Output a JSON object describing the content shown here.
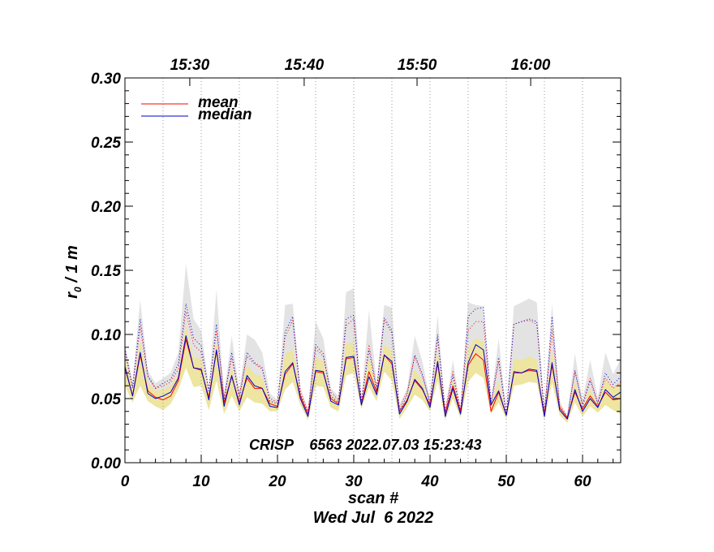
{
  "chart_data": {
    "type": "line",
    "title": "",
    "xlabel": "scan #",
    "ylabel": "r₀ / 1 m",
    "ylabel_main": "r",
    "ylabel_sub": "0",
    "ylabel_rest": " / 1 m",
    "date_label": "Wed Jul  6 2022",
    "annotation": "CRISP    6563 2022.07.03 15:23:43",
    "xlim": [
      0,
      65
    ],
    "ylim": [
      0.0,
      0.3
    ],
    "x_ticks": [
      0,
      10,
      20,
      30,
      40,
      50,
      60
    ],
    "x_tick_labels": [
      "0",
      "10",
      "20",
      "30",
      "40",
      "50",
      "60"
    ],
    "y_ticks": [
      0.0,
      0.05,
      0.1,
      0.15,
      0.2,
      0.25,
      0.3
    ],
    "y_tick_labels": [
      "0.00",
      "0.05",
      "0.10",
      "0.15",
      "0.20",
      "0.25",
      "0.30"
    ],
    "top_axis": {
      "labels": [
        "15:30",
        "15:40",
        "15:50",
        "16:00"
      ],
      "positions_scan": [
        8.5,
        23.5,
        38.3,
        53.2
      ]
    },
    "time_gridlines_scan": [
      5,
      10,
      15,
      20,
      25,
      30,
      35,
      40,
      45,
      50,
      55,
      60
    ],
    "legend": [
      {
        "name": "mean",
        "color": "#ff0000"
      },
      {
        "name": "median",
        "color": "#0000cc"
      }
    ],
    "colors": {
      "mean": "#ff0000",
      "median": "#0000cc",
      "band_outer": "#e3e3e3",
      "band_inner": "#ede5a0",
      "grid": "#999999"
    },
    "series": [
      {
        "name": "mean",
        "values": [
          0.074,
          0.052,
          0.084,
          0.056,
          0.051,
          0.049,
          0.052,
          0.064,
          0.096,
          0.074,
          0.072,
          0.051,
          0.087,
          0.047,
          0.067,
          0.047,
          0.066,
          0.058,
          0.058,
          0.046,
          0.044,
          0.069,
          0.077,
          0.052,
          0.038,
          0.071,
          0.07,
          0.05,
          0.046,
          0.081,
          0.082,
          0.046,
          0.071,
          0.055,
          0.084,
          0.077,
          0.04,
          0.049,
          0.064,
          0.057,
          0.045,
          0.077,
          0.039,
          0.06,
          0.04,
          0.076,
          0.085,
          0.08,
          0.04,
          0.055,
          0.037,
          0.07,
          0.07,
          0.072,
          0.071,
          0.038,
          0.076,
          0.043,
          0.035,
          0.055,
          0.042,
          0.052,
          0.044,
          0.055,
          0.049,
          0.05
        ]
      },
      {
        "name": "median",
        "values": [
          0.075,
          0.052,
          0.086,
          0.054,
          0.05,
          0.052,
          0.055,
          0.066,
          0.099,
          0.074,
          0.073,
          0.049,
          0.088,
          0.044,
          0.068,
          0.045,
          0.068,
          0.06,
          0.058,
          0.044,
          0.043,
          0.071,
          0.078,
          0.05,
          0.036,
          0.072,
          0.071,
          0.048,
          0.045,
          0.082,
          0.083,
          0.045,
          0.067,
          0.053,
          0.084,
          0.079,
          0.038,
          0.048,
          0.065,
          0.058,
          0.043,
          0.079,
          0.036,
          0.058,
          0.038,
          0.078,
          0.092,
          0.088,
          0.045,
          0.056,
          0.037,
          0.071,
          0.07,
          0.073,
          0.072,
          0.036,
          0.078,
          0.041,
          0.034,
          0.057,
          0.04,
          0.05,
          0.043,
          0.057,
          0.051,
          0.055
        ]
      },
      {
        "name": "mean upper (dotted)",
        "values": [
          0.087,
          0.058,
          0.106,
          0.067,
          0.058,
          0.06,
          0.063,
          0.073,
          0.118,
          0.092,
          0.086,
          0.057,
          0.103,
          0.051,
          0.082,
          0.053,
          0.083,
          0.077,
          0.073,
          0.05,
          0.047,
          0.098,
          0.111,
          0.055,
          0.04,
          0.089,
          0.083,
          0.055,
          0.049,
          0.107,
          0.112,
          0.048,
          0.092,
          0.058,
          0.111,
          0.101,
          0.043,
          0.055,
          0.083,
          0.067,
          0.048,
          0.097,
          0.041,
          0.071,
          0.041,
          0.103,
          0.11,
          0.11,
          0.045,
          0.079,
          0.038,
          0.108,
          0.11,
          0.111,
          0.108,
          0.039,
          0.103,
          0.045,
          0.036,
          0.071,
          0.046,
          0.066,
          0.047,
          0.066,
          0.058,
          0.063
        ]
      },
      {
        "name": "median upper (dotted)",
        "values": [
          0.089,
          0.059,
          0.112,
          0.068,
          0.058,
          0.062,
          0.065,
          0.077,
          0.124,
          0.097,
          0.091,
          0.056,
          0.108,
          0.049,
          0.086,
          0.05,
          0.086,
          0.078,
          0.074,
          0.048,
          0.046,
          0.102,
          0.114,
          0.053,
          0.038,
          0.092,
          0.085,
          0.052,
          0.047,
          0.112,
          0.115,
          0.047,
          0.088,
          0.056,
          0.113,
          0.103,
          0.04,
          0.053,
          0.084,
          0.069,
          0.046,
          0.1,
          0.038,
          0.068,
          0.039,
          0.114,
          0.12,
          0.121,
          0.047,
          0.082,
          0.037,
          0.108,
          0.11,
          0.112,
          0.11,
          0.037,
          0.114,
          0.043,
          0.035,
          0.072,
          0.044,
          0.064,
          0.046,
          0.07,
          0.061,
          0.067
        ]
      }
    ],
    "bands": [
      {
        "name": "gray range",
        "lower": [
          0.068,
          0.05,
          0.08,
          0.052,
          0.049,
          0.05,
          0.053,
          0.062,
          0.09,
          0.07,
          0.068,
          0.048,
          0.08,
          0.044,
          0.064,
          0.045,
          0.064,
          0.058,
          0.056,
          0.044,
          0.043,
          0.068,
          0.074,
          0.05,
          0.036,
          0.068,
          0.067,
          0.048,
          0.045,
          0.078,
          0.08,
          0.045,
          0.068,
          0.053,
          0.081,
          0.076,
          0.038,
          0.048,
          0.062,
          0.056,
          0.043,
          0.076,
          0.036,
          0.058,
          0.038,
          0.076,
          0.086,
          0.082,
          0.043,
          0.054,
          0.037,
          0.068,
          0.068,
          0.07,
          0.069,
          0.036,
          0.075,
          0.041,
          0.034,
          0.055,
          0.04,
          0.05,
          0.043,
          0.055,
          0.049,
          0.052
        ],
        "upper": [
          0.092,
          0.064,
          0.127,
          0.072,
          0.062,
          0.066,
          0.07,
          0.086,
          0.155,
          0.112,
          0.103,
          0.06,
          0.135,
          0.054,
          0.099,
          0.056,
          0.1,
          0.096,
          0.086,
          0.054,
          0.049,
          0.123,
          0.124,
          0.059,
          0.042,
          0.11,
          0.097,
          0.058,
          0.052,
          0.133,
          0.136,
          0.051,
          0.119,
          0.062,
          0.123,
          0.121,
          0.045,
          0.058,
          0.099,
          0.079,
          0.05,
          0.115,
          0.042,
          0.08,
          0.043,
          0.125,
          0.123,
          0.122,
          0.049,
          0.097,
          0.04,
          0.122,
          0.125,
          0.128,
          0.125,
          0.041,
          0.124,
          0.048,
          0.037,
          0.085,
          0.049,
          0.08,
          0.051,
          0.086,
          0.069,
          0.081
        ]
      },
      {
        "name": "yellow range",
        "lower": [
          0.06,
          0.047,
          0.06,
          0.048,
          0.044,
          0.041,
          0.046,
          0.057,
          0.074,
          0.059,
          0.06,
          0.041,
          0.064,
          0.038,
          0.052,
          0.04,
          0.051,
          0.047,
          0.046,
          0.04,
          0.04,
          0.057,
          0.063,
          0.045,
          0.033,
          0.06,
          0.059,
          0.043,
          0.04,
          0.068,
          0.07,
          0.042,
          0.059,
          0.048,
          0.071,
          0.064,
          0.034,
          0.043,
          0.053,
          0.049,
          0.04,
          0.064,
          0.033,
          0.05,
          0.035,
          0.063,
          0.07,
          0.066,
          0.038,
          0.047,
          0.034,
          0.06,
          0.061,
          0.063,
          0.062,
          0.033,
          0.062,
          0.037,
          0.031,
          0.047,
          0.036,
          0.044,
          0.039,
          0.045,
          0.041,
          0.038
        ],
        "upper": [
          0.082,
          0.057,
          0.094,
          0.062,
          0.056,
          0.057,
          0.06,
          0.07,
          0.107,
          0.082,
          0.081,
          0.055,
          0.095,
          0.049,
          0.075,
          0.05,
          0.076,
          0.069,
          0.067,
          0.049,
          0.046,
          0.085,
          0.088,
          0.054,
          0.039,
          0.082,
          0.079,
          0.053,
          0.048,
          0.093,
          0.094,
          0.047,
          0.083,
          0.057,
          0.092,
          0.087,
          0.041,
          0.052,
          0.073,
          0.063,
          0.046,
          0.087,
          0.039,
          0.065,
          0.04,
          0.089,
          0.097,
          0.094,
          0.046,
          0.064,
          0.036,
          0.081,
          0.08,
          0.083,
          0.08,
          0.037,
          0.087,
          0.044,
          0.035,
          0.064,
          0.043,
          0.058,
          0.045,
          0.065,
          0.058,
          0.062
        ]
      }
    ]
  }
}
